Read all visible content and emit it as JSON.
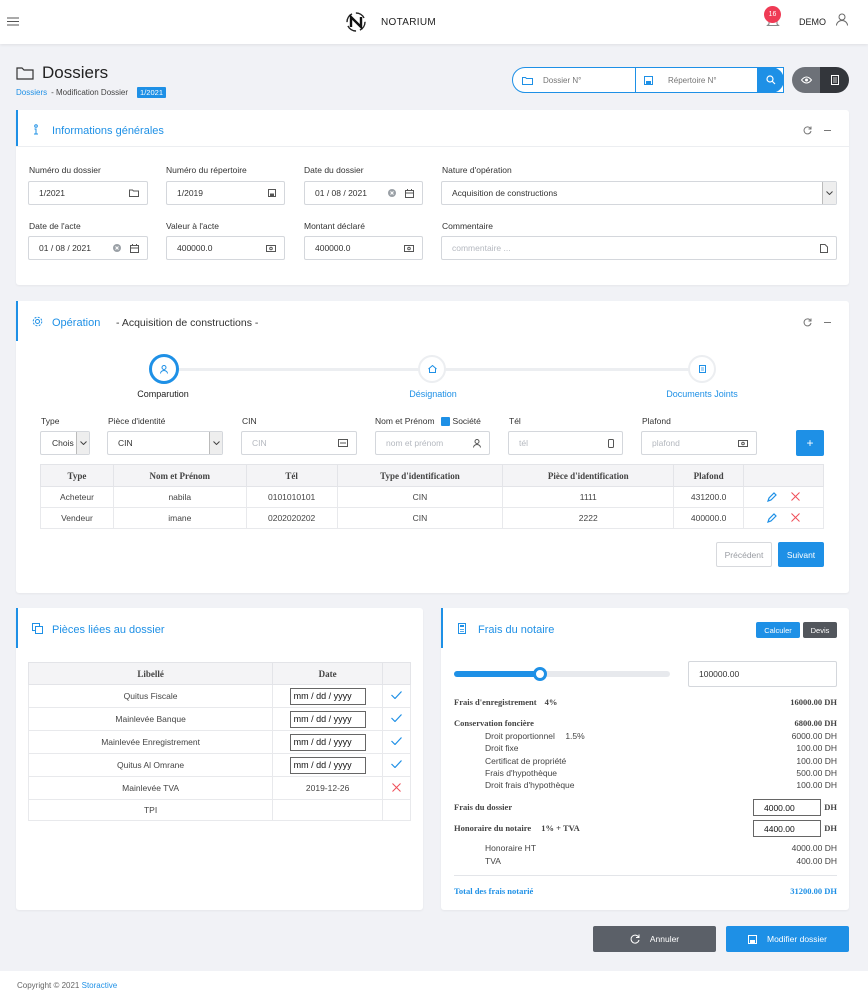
{
  "header": {
    "brand": "NOTARIUM",
    "notif_count": "16",
    "user": "DEMO"
  },
  "page": {
    "title": "Dossiers",
    "bc_link": "Dossiers",
    "bc_sep": "- Modification Dossier",
    "bc_badge": "1/2021",
    "search_dossier_ph": "Dossier N°",
    "search_repertoire_ph": "Répertoire N°"
  },
  "info": {
    "title": "Informations générales",
    "num_dossier_label": "Numéro du dossier",
    "num_dossier": "1/2021",
    "num_repertoire_label": "Numéro du répertoire",
    "num_repertoire": "1/2019",
    "date_dossier_label": "Date du dossier",
    "date_dossier": "01 / 08 / 2021",
    "nature_label": "Nature d'opération",
    "nature": "Acquisition de constructions",
    "date_acte_label": "Date de l'acte",
    "date_acte": "01 / 08 / 2021",
    "valeur_label": "Valeur à l'acte",
    "valeur": "400000.0",
    "montant_label": "Montant déclaré",
    "montant": "400000.0",
    "commentaire_label": "Commentaire",
    "commentaire_ph": "commentaire ..."
  },
  "operation": {
    "title": "Opération",
    "subtitle": "- Acquisition de constructions -",
    "steps": [
      "Comparution",
      "Désignation",
      "Documents Joints"
    ],
    "type_label": "Type",
    "type_value": "Chois",
    "piece_label": "Pièce d'identité",
    "piece_value": "CIN",
    "cin_label": "CIN",
    "cin_ph": "CIN",
    "nom_label": "Nom et Prénom",
    "societe_label": "Société",
    "nom_ph": "nom et prénom",
    "tel_label": "Tél",
    "tel_ph": "tél",
    "plafond_label": "Plafond",
    "plafond_ph": "plafond",
    "add_label": "+",
    "columns": [
      "Type",
      "Nom et Prénom",
      "Tél",
      "Type d'identification",
      "Pièce d'identification",
      "Plafond"
    ],
    "rows": [
      {
        "type": "Acheteur",
        "nom": "nabila",
        "tel": "0101010101",
        "type_id": "CIN",
        "piece": "1111",
        "plafond": "431200.0"
      },
      {
        "type": "Vendeur",
        "nom": "imane",
        "tel": "0202020202",
        "type_id": "CIN",
        "piece": "2222",
        "plafond": "400000.0"
      }
    ],
    "prev_label": "Précédent",
    "next_label": "Suivant"
  },
  "pieces": {
    "title": "Pièces liées au dossier",
    "columns": [
      "Libellé",
      "Date"
    ],
    "rows": [
      {
        "libelle": "Quitus Fiscale",
        "date": "mm / dd / yyyy",
        "status": "ok"
      },
      {
        "libelle": "Mainlevée Banque",
        "date": "mm / dd / yyyy",
        "status": "ok"
      },
      {
        "libelle": "Mainlevée Enregistrement",
        "date": "mm / dd / yyyy",
        "status": "ok"
      },
      {
        "libelle": "Quitus Al Omrane",
        "date": "mm / dd / yyyy",
        "status": "ok"
      },
      {
        "libelle": "Mainlevée TVA",
        "date": "2019-12-26",
        "status": "ko"
      },
      {
        "libelle": "TPI",
        "date": "",
        "status": "none"
      }
    ]
  },
  "frais": {
    "title": "Frais du notaire",
    "calc_label": "Calculer",
    "devis_label": "Devis",
    "slider_fraction": 0.4,
    "amount": "100000.00",
    "enreg_label": "Frais d'enregistrement",
    "enreg_rate": "4%",
    "enreg_value": "16000.00 DH",
    "cons_label": "Conservation foncière",
    "cons_value": "6800.00 DH",
    "droit_prop_label": "Droit proportionnel",
    "droit_prop_rate": "1.5%",
    "droit_prop_value": "6000.00 DH",
    "droit_fixe_label": "Droit fixe",
    "droit_fixe_value": "100.00 DH",
    "certif_label": "Certificat de propriété",
    "certif_value": "100.00 DH",
    "hypo_label": "Frais d'hypothèque",
    "hypo_value": "500.00 DH",
    "droit_hypo_label": "Droit frais d'hypothèque",
    "droit_hypo_value": "100.00 DH",
    "dossier_label": "Frais du dossier",
    "dossier_value": "4000.00",
    "dh": "DH",
    "honoraire_label": "Honoraire du notaire",
    "honoraire_rate": "1% + TVA",
    "honoraire_value": "4400.00",
    "ht_label": "Honoraire HT",
    "ht_value": "4000.00 DH",
    "tva_label": "TVA",
    "tva_value": "400.00 DH",
    "total_label": "Total des frais notarié",
    "total_value": "31200.00 DH"
  },
  "actions": {
    "cancel": "Annuler",
    "save": "Modifier dossier"
  },
  "footer": {
    "copyright": "Copyright © 2021",
    "company": "Storactive"
  }
}
